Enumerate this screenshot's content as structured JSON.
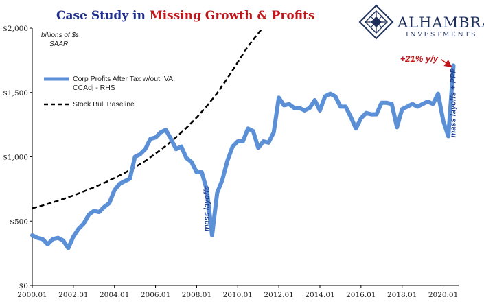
{
  "chart_data": {
    "type": "line",
    "title_part1": "Case Study in ",
    "title_part2": "Missing Growth & Profits",
    "units_line1": "billions of $s",
    "units_line2": "SAAR",
    "xlim": [
      2000.0,
      2020.75
    ],
    "ylim": [
      0,
      2000
    ],
    "y_ticks": [
      0,
      500,
      1000,
      1500,
      2000
    ],
    "y_tick_labels": [
      "$0",
      "$500",
      "$1,000",
      "$1,500",
      "$2,000"
    ],
    "x_ticks": [
      2000,
      2002,
      2004,
      2006,
      2008,
      2010,
      2012,
      2014,
      2016,
      2018,
      2020
    ],
    "x_tick_labels": [
      "2000.01",
      "2002.01",
      "2004.01",
      "2006.01",
      "2008.01",
      "2010.01",
      "2012.01",
      "2014.01",
      "2016.01",
      "2018.01",
      "2020.01"
    ],
    "grid": false,
    "legend_position": "upper-left",
    "colors": {
      "profits": "#5b8fd6",
      "baseline": "#000000",
      "title_blue": "#1f2f8f",
      "title_red": "#c0171b",
      "annotation_blue": "#1f3f8f",
      "annotation_red": "#c0171b"
    },
    "series": [
      {
        "name": "Corp Profits After Tax w/out IVA, CCAdj - RHS",
        "legend_line1": "Corp Profits After Tax w/out IVA,",
        "legend_line2": "CCAdj - RHS",
        "style": "solid",
        "x": [
          2000.0,
          2000.25,
          2000.5,
          2000.75,
          2001.0,
          2001.25,
          2001.5,
          2001.75,
          2002.0,
          2002.25,
          2002.5,
          2002.75,
          2003.0,
          2003.25,
          2003.5,
          2003.75,
          2004.0,
          2004.25,
          2004.5,
          2004.75,
          2005.0,
          2005.25,
          2005.5,
          2005.75,
          2006.0,
          2006.25,
          2006.5,
          2006.75,
          2007.0,
          2007.25,
          2007.5,
          2007.75,
          2008.0,
          2008.25,
          2008.5,
          2008.75,
          2009.0,
          2009.25,
          2009.5,
          2009.75,
          2010.0,
          2010.25,
          2010.5,
          2010.75,
          2011.0,
          2011.25,
          2011.5,
          2011.75,
          2012.0,
          2012.25,
          2012.5,
          2012.75,
          2013.0,
          2013.25,
          2013.5,
          2013.75,
          2014.0,
          2014.25,
          2014.5,
          2014.75,
          2015.0,
          2015.25,
          2015.5,
          2015.75,
          2016.0,
          2016.25,
          2016.5,
          2016.75,
          2017.0,
          2017.25,
          2017.5,
          2017.75,
          2018.0,
          2018.25,
          2018.5,
          2018.75,
          2019.0,
          2019.25,
          2019.5,
          2019.75,
          2020.0,
          2020.25,
          2020.5
        ],
        "values": [
          390,
          370,
          360,
          320,
          360,
          370,
          350,
          290,
          380,
          440,
          480,
          550,
          580,
          570,
          610,
          640,
          740,
          790,
          810,
          830,
          1000,
          1020,
          1060,
          1140,
          1150,
          1190,
          1210,
          1140,
          1060,
          1080,
          990,
          960,
          880,
          880,
          740,
          390,
          720,
          820,
          970,
          1080,
          1120,
          1120,
          1220,
          1200,
          1070,
          1120,
          1110,
          1190,
          1460,
          1400,
          1410,
          1380,
          1380,
          1360,
          1380,
          1440,
          1360,
          1470,
          1490,
          1470,
          1390,
          1390,
          1310,
          1220,
          1300,
          1340,
          1330,
          1330,
          1420,
          1420,
          1410,
          1230,
          1370,
          1390,
          1410,
          1390,
          1410,
          1430,
          1410,
          1490,
          1280,
          1160,
          1710
        ]
      },
      {
        "name": "Stock Bull Baseline",
        "legend_line1": "Stock Bull Baseline",
        "style": "dashed",
        "x": [
          2000.0,
          2000.5,
          2001.0,
          2001.5,
          2002.0,
          2002.5,
          2003.0,
          2003.5,
          2004.0,
          2004.5,
          2005.0,
          2005.5,
          2006.0,
          2006.5,
          2007.0,
          2007.5,
          2008.0,
          2008.5,
          2009.0,
          2009.5,
          2010.0,
          2010.5,
          2011.0,
          2011.2
        ],
        "values": [
          600,
          622,
          646,
          672,
          700,
          730,
          762,
          797,
          835,
          875,
          920,
          968,
          1025,
          1085,
          1152,
          1225,
          1305,
          1395,
          1495,
          1610,
          1735,
          1860,
          1960,
          2000
        ]
      }
    ],
    "annotations": [
      {
        "text": "mass layoffs",
        "x": 2008.6,
        "y": 420,
        "color": "blue",
        "rotate": -90
      },
      {
        "text": "mass layoffs + PPP",
        "x": 2020.6,
        "y": 1150,
        "color": "blue",
        "rotate": -90
      },
      {
        "text": "+21% y/y",
        "x": 2017.9,
        "y": 1740,
        "color": "red",
        "arrow_to_x": 2020.4,
        "arrow_to_y": 1700
      }
    ]
  },
  "logo": {
    "name": "ALHAMBRA",
    "subtitle": "INVESTMENTS"
  }
}
